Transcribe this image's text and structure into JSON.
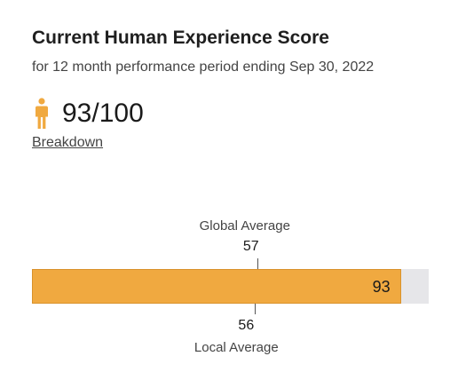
{
  "header": {
    "title": "Current Human Experience Score",
    "subtitle": "for 12 month performance period ending Sep 30, 2022"
  },
  "score": {
    "value_text": "93/100",
    "icon": "person-icon",
    "icon_color": "#f0a940"
  },
  "links": {
    "breakdown": "Breakdown"
  },
  "chart_data": {
    "type": "bar",
    "orientation": "horizontal",
    "range": [
      0,
      100
    ],
    "value": 93,
    "value_label": "93",
    "bar_color": "#f0a940",
    "track_color": "#e6e6e9",
    "markers": [
      {
        "label": "Global Average",
        "value": 57,
        "value_label": "57",
        "position": "above"
      },
      {
        "label": "Local Average",
        "value": 56,
        "value_label": "56",
        "position": "below"
      }
    ]
  }
}
